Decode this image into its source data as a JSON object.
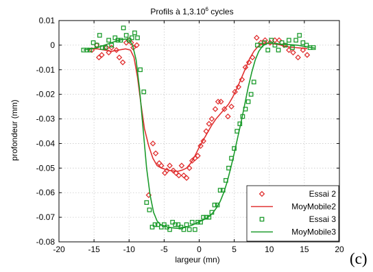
{
  "figure_tag": "(c)",
  "chart_data": {
    "type": "scatter",
    "title": "Profils à 1,3.10",
    "title_sup": "6",
    "title_after": " cycles",
    "xlabel": "largeur (mn)",
    "ylabel": "profondeur (mm)",
    "xlim": [
      -20,
      20
    ],
    "ylim": [
      -0.08,
      0.01
    ],
    "xticks": [
      "-20",
      "-15",
      "-10",
      "-5",
      "0",
      "5",
      "10",
      "15",
      "20"
    ],
    "yticks": [
      "0.01",
      "0",
      "-0.01",
      "-0.02",
      "-0.03",
      "-0.04",
      "-0.05",
      "-0.06",
      "-0.07",
      "-0.08"
    ],
    "grid": true,
    "legend_position": "bottom-right",
    "colors": {
      "red": "#e03030",
      "green": "#1a9a2a"
    },
    "series": [
      {
        "name": "Essai  2",
        "kind": "markers",
        "marker": "diamond",
        "color": "#e03030",
        "x": [
          -15.3,
          -14.6,
          -14.3,
          -13.9,
          -13.2,
          -12.9,
          -12.5,
          -11.8,
          -11.4,
          -10.9,
          -10.4,
          -10.0,
          -9.7,
          -9.4,
          -8.9,
          -7.2,
          -6.6,
          -6.2,
          -5.7,
          -5.4,
          -4.9,
          -4.6,
          -4.2,
          -3.7,
          -3.3,
          -2.9,
          -2.5,
          -2.2,
          -1.8,
          -1.4,
          -1.0,
          -0.6,
          -0.2,
          0.2,
          0.6,
          1.0,
          1.4,
          1.8,
          2.3,
          2.7,
          3.1,
          3.6,
          4.1,
          4.6,
          5.1,
          5.6,
          6.1,
          6.6,
          7.1,
          7.6,
          8.2,
          8.8,
          9.4,
          10.1,
          10.8,
          11.4,
          12.1,
          12.8,
          13.4,
          14.1,
          14.8,
          15.4
        ],
        "y": [
          -0.002,
          0.0,
          -0.005,
          -0.004,
          -0.001,
          -0.003,
          -0.001,
          -0.002,
          -0.005,
          -0.007,
          0.001,
          0.002,
          0.001,
          -0.001,
          0.0,
          -0.061,
          -0.04,
          -0.044,
          -0.048,
          -0.049,
          -0.052,
          -0.051,
          -0.049,
          -0.051,
          -0.052,
          -0.053,
          -0.049,
          -0.053,
          -0.054,
          -0.05,
          -0.047,
          -0.046,
          -0.045,
          -0.041,
          -0.039,
          -0.035,
          -0.032,
          -0.03,
          -0.026,
          -0.023,
          -0.023,
          -0.026,
          -0.029,
          -0.025,
          -0.019,
          -0.017,
          -0.014,
          -0.009,
          -0.007,
          -0.005,
          0.003,
          0.001,
          0.002,
          0.001,
          0.002,
          0.002,
          0.0,
          -0.002,
          -0.003,
          -0.005,
          -0.002,
          -0.004
        ]
      },
      {
        "name": "MoyMobile2",
        "kind": "line",
        "color": "#e03030",
        "x": [
          -15.5,
          -14.5,
          -13.5,
          -12.5,
          -11.5,
          -10.5,
          -9.8,
          -9.3,
          -8.8,
          -8.3,
          -7.8,
          -7.2,
          -6.6,
          -6.0,
          -5.4,
          -4.8,
          -4.2,
          -3.6,
          -3.0,
          -2.4,
          -1.8,
          -1.2,
          -0.6,
          0.0,
          0.6,
          1.2,
          1.8,
          2.4,
          3.0,
          3.6,
          4.2,
          4.8,
          5.4,
          6.0,
          6.6,
          7.2,
          7.8,
          8.4,
          9.0,
          9.8,
          10.6,
          11.4,
          12.2,
          13.0,
          13.8,
          14.6,
          15.4
        ],
        "y": [
          -0.0015,
          -0.0015,
          -0.002,
          -0.0025,
          -0.002,
          -0.0015,
          -0.002,
          -0.005,
          -0.013,
          -0.024,
          -0.034,
          -0.041,
          -0.046,
          -0.049,
          -0.05,
          -0.0505,
          -0.051,
          -0.0512,
          -0.0513,
          -0.0508,
          -0.05,
          -0.048,
          -0.045,
          -0.0415,
          -0.0385,
          -0.0355,
          -0.0325,
          -0.03,
          -0.028,
          -0.026,
          -0.024,
          -0.021,
          -0.0175,
          -0.0135,
          -0.0095,
          -0.0055,
          -0.0025,
          -0.0005,
          0.0005,
          0.0008,
          0.0005,
          0.0002,
          -0.0004,
          -0.0008,
          -0.001,
          -0.0012,
          -0.0014
        ]
      },
      {
        "name": "Essai  3",
        "kind": "markers",
        "marker": "square",
        "color": "#1a9a2a",
        "x": [
          -16.5,
          -16.0,
          -15.6,
          -15.1,
          -14.6,
          -14.2,
          -13.8,
          -13.4,
          -12.9,
          -12.5,
          -12.0,
          -11.6,
          -11.2,
          -10.8,
          -10.4,
          -10.0,
          -9.6,
          -9.2,
          -8.8,
          -8.4,
          -7.9,
          -7.5,
          -7.1,
          -6.7,
          -6.3,
          -5.9,
          -5.4,
          -5.0,
          -4.6,
          -4.2,
          -3.8,
          -3.4,
          -3.0,
          -2.6,
          -2.2,
          -1.8,
          -1.4,
          -1.0,
          -0.6,
          -0.2,
          0.2,
          0.6,
          1.0,
          1.4,
          1.8,
          2.2,
          2.6,
          3.0,
          3.4,
          3.8,
          4.2,
          4.6,
          5.0,
          5.4,
          5.8,
          6.2,
          6.6,
          7.0,
          7.4,
          7.8,
          8.3,
          8.8,
          9.3,
          9.8,
          10.3,
          10.8,
          11.3,
          11.8,
          12.3,
          12.8,
          13.3,
          13.8,
          14.3,
          14.8,
          15.3,
          15.8,
          16.3
        ],
        "y": [
          -0.002,
          -0.002,
          -0.002,
          0.001,
          0.0,
          0.004,
          -0.001,
          -0.001,
          0.002,
          0.0,
          0.003,
          0.002,
          0.002,
          0.007,
          0.004,
          0.002,
          0.003,
          0.005,
          0.003,
          -0.01,
          -0.019,
          -0.064,
          -0.067,
          -0.074,
          -0.073,
          -0.073,
          -0.074,
          -0.073,
          -0.074,
          -0.075,
          -0.072,
          -0.073,
          -0.073,
          -0.074,
          -0.075,
          -0.073,
          -0.075,
          -0.072,
          -0.075,
          -0.072,
          -0.072,
          -0.07,
          -0.07,
          -0.07,
          -0.068,
          -0.065,
          -0.065,
          -0.059,
          -0.059,
          -0.055,
          -0.05,
          -0.046,
          -0.042,
          -0.035,
          -0.032,
          -0.029,
          -0.026,
          -0.023,
          -0.02,
          -0.015,
          0.0,
          0.0,
          0.001,
          -0.002,
          0.002,
          0.0,
          -0.002,
          0.001,
          0.0,
          0.002,
          -0.001,
          0.002,
          0.004,
          0.001,
          0.0,
          -0.001,
          -0.001
        ]
      },
      {
        "name": "MoyMobile3",
        "kind": "line",
        "color": "#1a9a2a",
        "x": [
          -16.5,
          -15.5,
          -14.5,
          -13.5,
          -12.5,
          -11.5,
          -10.5,
          -10.0,
          -9.5,
          -9.0,
          -8.5,
          -8.0,
          -7.5,
          -7.0,
          -6.5,
          -6.0,
          -5.5,
          -5.0,
          -4.5,
          -4.0,
          -3.5,
          -3.0,
          -2.5,
          -2.0,
          -1.5,
          -1.0,
          -0.5,
          0.0,
          0.5,
          1.0,
          1.5,
          2.0,
          2.5,
          3.0,
          3.5,
          4.0,
          4.5,
          5.0,
          5.5,
          6.0,
          6.5,
          7.0,
          7.5,
          8.0,
          8.5,
          9.0,
          9.5,
          10.0,
          11.0,
          12.0,
          13.0,
          14.0,
          15.0,
          16.0,
          16.5
        ],
        "y": [
          -0.002,
          -0.0015,
          -0.001,
          0.0,
          0.001,
          0.002,
          0.0025,
          0.002,
          0.0,
          -0.006,
          -0.018,
          -0.034,
          -0.05,
          -0.061,
          -0.068,
          -0.0715,
          -0.073,
          -0.0735,
          -0.074,
          -0.0742,
          -0.0744,
          -0.0745,
          -0.0742,
          -0.074,
          -0.0737,
          -0.0732,
          -0.0725,
          -0.0718,
          -0.0712,
          -0.0705,
          -0.0695,
          -0.068,
          -0.066,
          -0.0635,
          -0.06,
          -0.0555,
          -0.05,
          -0.044,
          -0.0375,
          -0.031,
          -0.024,
          -0.017,
          -0.011,
          -0.006,
          -0.0025,
          -0.0005,
          0.0005,
          0.0008,
          0.0006,
          0.0003,
          0.0002,
          0.0,
          -0.0005,
          -0.001,
          -0.0012
        ]
      }
    ]
  }
}
